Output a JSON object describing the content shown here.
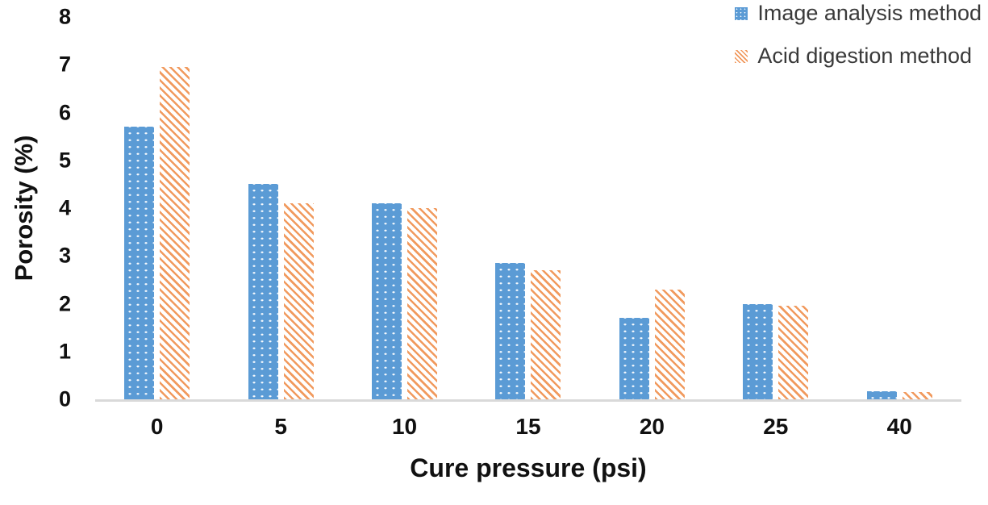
{
  "chart_data": {
    "type": "bar",
    "title": "",
    "xlabel": "Cure pressure (psi)",
    "ylabel": "Porosity (%)",
    "categories": [
      "0",
      "5",
      "10",
      "15",
      "20",
      "25",
      "40"
    ],
    "series": [
      {
        "name": "Image analysis method",
        "color": "#5b9bd5",
        "pattern": "white-dots-on-blue",
        "values": [
          5.7,
          4.5,
          4.1,
          2.85,
          1.7,
          2.0,
          0.17
        ]
      },
      {
        "name": "Acid digestion method",
        "color": "#ed7d31",
        "pattern": "orange-diagonal-stripes-on-white",
        "values": [
          6.95,
          4.1,
          4.0,
          2.7,
          2.3,
          1.95,
          0.15
        ]
      }
    ],
    "ylim": [
      0,
      8
    ],
    "yticks": [
      "0",
      "1",
      "2",
      "3",
      "4",
      "5",
      "6",
      "7",
      "8"
    ],
    "grid": false,
    "legend_position": "top-right",
    "axis_line_color": "#d9d9d9"
  }
}
